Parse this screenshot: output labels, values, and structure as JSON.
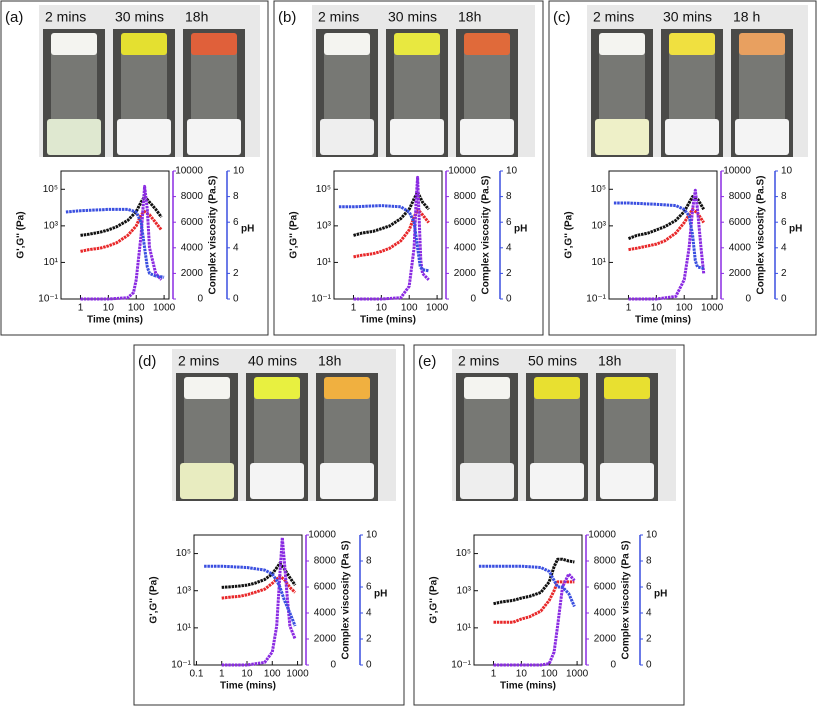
{
  "chart_data": [
    {
      "type": "line",
      "panel": "(a)",
      "photo_labels": [
        "2 mins",
        "30 mins",
        "18h"
      ],
      "xlabel": "Time (mins)",
      "ylabel": "G',G'' (Pa)",
      "y2label": "Complex viscosity (Pa.S)",
      "y3label": "pH",
      "xscale": "log",
      "yscale": "log",
      "xlim": [
        0.2,
        1500
      ],
      "xticks": [
        1,
        10,
        100,
        1000
      ],
      "ylim": [
        0.1,
        1000000
      ],
      "yticks": [
        {
          "value": 0.1,
          "label": "10⁻¹"
        },
        {
          "value": 10,
          "label": "10¹"
        },
        {
          "value": 1000,
          "label": "10³"
        },
        {
          "value": 100000,
          "label": "10⁵"
        }
      ],
      "y2lim": [
        0,
        10000
      ],
      "y2ticks": [
        0,
        2000,
        4000,
        6000,
        8000,
        10000
      ],
      "y3lim": [
        0,
        10
      ],
      "y3ticks": [
        0,
        2,
        4,
        6,
        8,
        10
      ],
      "series": [
        {
          "color": "#111111",
          "x": [
            1,
            2,
            5,
            10,
            20,
            50,
            100,
            150,
            200,
            300,
            500,
            800
          ],
          "values": [
            300,
            350,
            450,
            600,
            900,
            2000,
            6000,
            20000,
            40000,
            20000,
            8000,
            3000
          ]
        },
        {
          "color": "#e8282a",
          "x": [
            1,
            2,
            5,
            10,
            20,
            50,
            100,
            150,
            200,
            300,
            500,
            800
          ],
          "values": [
            40,
            50,
            60,
            80,
            120,
            300,
            1000,
            4000,
            6000,
            4000,
            1500,
            600
          ]
        },
        {
          "color": "#8a2be2",
          "axis": "y2",
          "x": [
            1,
            10,
            50,
            80,
            100,
            150,
            200,
            250,
            300,
            500,
            800
          ],
          "values": [
            0,
            0,
            100,
            500,
            1500,
            5000,
            8800,
            7000,
            4000,
            2000,
            1500
          ]
        },
        {
          "color": "#3a4fe0",
          "axis": "y3",
          "x": [
            0.3,
            1,
            10,
            50,
            100,
            150,
            200,
            250,
            300,
            500,
            1000
          ],
          "values": [
            6.8,
            6.9,
            7,
            7,
            6.8,
            6,
            4,
            2.5,
            2,
            1.8,
            1.7
          ]
        }
      ]
    },
    {
      "type": "line",
      "panel": "(b)",
      "photo_labels": [
        "2 mins",
        "30 mins",
        "18h"
      ],
      "xlabel": "Time (mins)",
      "ylabel": "G',G'' (Pa)",
      "y2label": "Complex viscosity (Pa.S)",
      "y3label": "pH",
      "xscale": "log",
      "yscale": "log",
      "xlim": [
        0.2,
        1500
      ],
      "xticks": [
        1,
        10,
        100,
        1000
      ],
      "ylim": [
        0.1,
        1000000
      ],
      "yticks": [
        {
          "value": 0.1,
          "label": "10⁻¹"
        },
        {
          "value": 10,
          "label": "10¹"
        },
        {
          "value": 1000,
          "label": "10³"
        },
        {
          "value": 100000,
          "label": "10⁵"
        }
      ],
      "y2lim": [
        0,
        10000
      ],
      "y2ticks": [
        0,
        2000,
        4000,
        6000,
        8000,
        10000
      ],
      "y3lim": [
        0,
        10
      ],
      "y3ticks": [
        0,
        2,
        4,
        6,
        8,
        10
      ],
      "series": [
        {
          "color": "#111111",
          "x": [
            1,
            2,
            5,
            10,
            20,
            50,
            100,
            150,
            200,
            300,
            500
          ],
          "values": [
            300,
            400,
            500,
            700,
            1000,
            2500,
            8000,
            30000,
            70000,
            20000,
            8000
          ]
        },
        {
          "color": "#e8282a",
          "x": [
            1,
            2,
            5,
            10,
            20,
            50,
            100,
            150,
            200,
            300,
            500
          ],
          "values": [
            20,
            25,
            30,
            40,
            60,
            150,
            600,
            3000,
            8000,
            4000,
            1500
          ]
        },
        {
          "color": "#8a2be2",
          "axis": "y2",
          "x": [
            1,
            10,
            50,
            100,
            150,
            180,
            200,
            230,
            260,
            300,
            500
          ],
          "values": [
            0,
            0,
            100,
            1000,
            4000,
            8000,
            9500,
            6000,
            3000,
            2000,
            1500
          ]
        },
        {
          "color": "#3a4fe0",
          "axis": "y3",
          "x": [
            0.3,
            1,
            10,
            50,
            100,
            150,
            200,
            250,
            300,
            500
          ],
          "values": [
            7.2,
            7.2,
            7.3,
            7.2,
            6.8,
            6,
            4,
            2.5,
            2.3,
            2.2
          ]
        }
      ]
    },
    {
      "type": "line",
      "panel": "(c)",
      "photo_labels": [
        "2 mins",
        "30 mins",
        "18 h"
      ],
      "xlabel": "Time (mins)",
      "ylabel": "G',G'' (Pa)",
      "y2label": "Complex viscosity (Pa.S)",
      "y3label": "pH",
      "xscale": "log",
      "yscale": "log",
      "xlim": [
        0.2,
        1500
      ],
      "xticks": [
        1,
        10,
        100,
        1000
      ],
      "ylim": [
        0.1,
        1000000
      ],
      "yticks": [
        {
          "value": 0.1,
          "label": "10⁻¹"
        },
        {
          "value": 10,
          "label": "10¹"
        },
        {
          "value": 1000,
          "label": "10³"
        },
        {
          "value": 100000,
          "label": "10⁵"
        }
      ],
      "y2lim": [
        0,
        10000
      ],
      "y2ticks": [
        0,
        2000,
        4000,
        6000,
        8000,
        10000
      ],
      "y3lim": [
        0,
        10
      ],
      "y3ticks": [
        0,
        2,
        4,
        6,
        8,
        10
      ],
      "series": [
        {
          "color": "#111111",
          "x": [
            1,
            2,
            5,
            10,
            20,
            50,
            100,
            200,
            300,
            500
          ],
          "values": [
            200,
            300,
            400,
            600,
            900,
            2000,
            6000,
            40000,
            30000,
            8000
          ]
        },
        {
          "color": "#e8282a",
          "x": [
            1,
            2,
            5,
            10,
            20,
            50,
            100,
            200,
            300,
            500
          ],
          "values": [
            50,
            60,
            80,
            100,
            150,
            400,
            1500,
            8000,
            5000,
            1500
          ]
        },
        {
          "color": "#8a2be2",
          "axis": "y2",
          "x": [
            1,
            10,
            50,
            100,
            150,
            200,
            250,
            300,
            400,
            500
          ],
          "values": [
            0,
            0,
            200,
            1500,
            4000,
            7000,
            8500,
            7000,
            4000,
            2000
          ]
        },
        {
          "color": "#3a4fe0",
          "axis": "y3",
          "x": [
            0.3,
            1,
            10,
            50,
            100,
            150,
            200,
            250,
            300,
            500
          ],
          "values": [
            7.5,
            7.5,
            7.4,
            7.3,
            7,
            6.5,
            5,
            3,
            2.5,
            2.4
          ]
        }
      ]
    },
    {
      "type": "line",
      "panel": "(d)",
      "photo_labels": [
        "2 mins",
        "40 mins",
        "18h"
      ],
      "xlabel": "Time (mins)",
      "ylabel": "G',G'' (Pa)",
      "y2label": "Complex viscosity (Pa S)",
      "y3label": "pH",
      "xscale": "log",
      "yscale": "log",
      "xlim": [
        0.08,
        1500
      ],
      "xticks": [
        0.1,
        1,
        10,
        100,
        1000
      ],
      "ylim": [
        0.1,
        1000000
      ],
      "yticks": [
        {
          "value": 0.1,
          "label": "10⁻¹"
        },
        {
          "value": 10,
          "label": "10¹"
        },
        {
          "value": 1000,
          "label": "10³"
        },
        {
          "value": 100000,
          "label": "10⁵"
        }
      ],
      "y2lim": [
        0,
        10000
      ],
      "y2ticks": [
        0,
        2000,
        4000,
        6000,
        8000,
        10000
      ],
      "y3lim": [
        0,
        10
      ],
      "y3ticks": [
        0,
        2,
        4,
        6,
        8,
        10
      ],
      "series": [
        {
          "color": "#111111",
          "x": [
            1,
            2,
            5,
            10,
            20,
            50,
            100,
            200,
            300,
            500,
            800
          ],
          "values": [
            1500,
            1600,
            1800,
            2000,
            2500,
            4000,
            8000,
            30000,
            15000,
            5000,
            2000
          ]
        },
        {
          "color": "#e8282a",
          "x": [
            1,
            2,
            5,
            10,
            20,
            50,
            100,
            200,
            300,
            500,
            800
          ],
          "values": [
            400,
            450,
            500,
            600,
            800,
            1200,
            2500,
            6000,
            4000,
            1500,
            800
          ]
        },
        {
          "color": "#8a2be2",
          "axis": "y2",
          "x": [
            1,
            10,
            50,
            100,
            150,
            200,
            250,
            300,
            400,
            500,
            800
          ],
          "values": [
            0,
            0,
            200,
            1000,
            3000,
            7000,
            9800,
            8000,
            5000,
            3000,
            2000
          ]
        },
        {
          "color": "#3a4fe0",
          "axis": "y3",
          "x": [
            0.2,
            1,
            10,
            50,
            100,
            150,
            200,
            300,
            500,
            800
          ],
          "values": [
            7.6,
            7.6,
            7.5,
            7.3,
            7,
            6.5,
            6,
            5,
            4,
            3
          ]
        }
      ]
    },
    {
      "type": "line",
      "panel": "(e)",
      "photo_labels": [
        "2 mins",
        "50 mins",
        "18h"
      ],
      "xlabel": "Time (mins)",
      "ylabel": "G',G'' (Pa)",
      "y2label": "Complex viscosity (Pa S)",
      "y3label": "pH",
      "xscale": "log",
      "yscale": "log",
      "xlim": [
        0.2,
        1500
      ],
      "xticks": [
        1,
        10,
        100,
        1000
      ],
      "ylim": [
        0.1,
        1000000
      ],
      "yticks": [
        {
          "value": 0.1,
          "label": "10⁻¹"
        },
        {
          "value": 10,
          "label": "10¹"
        },
        {
          "value": 1000,
          "label": "10³"
        },
        {
          "value": 100000,
          "label": "10⁵"
        }
      ],
      "y2lim": [
        0,
        10000
      ],
      "y2ticks": [
        0,
        2000,
        4000,
        6000,
        8000,
        10000
      ],
      "y3lim": [
        0,
        10
      ],
      "y3ticks": [
        0,
        2,
        4,
        6,
        8,
        10
      ],
      "series": [
        {
          "color": "#111111",
          "x": [
            1,
            2,
            5,
            10,
            20,
            50,
            100,
            150,
            200,
            300,
            500,
            800
          ],
          "values": [
            200,
            250,
            300,
            400,
            500,
            800,
            3000,
            20000,
            50000,
            50000,
            40000,
            35000
          ]
        },
        {
          "color": "#e8282a",
          "x": [
            1,
            2,
            5,
            10,
            20,
            50,
            100,
            150,
            200,
            300,
            500,
            800
          ],
          "values": [
            20,
            20,
            20,
            30,
            40,
            80,
            300,
            1000,
            3000,
            3000,
            3000,
            3000
          ]
        },
        {
          "color": "#8a2be2",
          "axis": "y2",
          "x": [
            1,
            10,
            50,
            100,
            150,
            200,
            300,
            500,
            800
          ],
          "values": [
            0,
            0,
            0,
            100,
            1000,
            3000,
            6000,
            7000,
            6500
          ]
        },
        {
          "color": "#3a4fe0",
          "axis": "y3",
          "x": [
            0.3,
            1,
            10,
            50,
            100,
            150,
            200,
            300,
            500,
            800
          ],
          "values": [
            7.6,
            7.6,
            7.6,
            7.5,
            7.2,
            6.5,
            6,
            6,
            5.5,
            4.5
          ]
        }
      ]
    }
  ]
}
